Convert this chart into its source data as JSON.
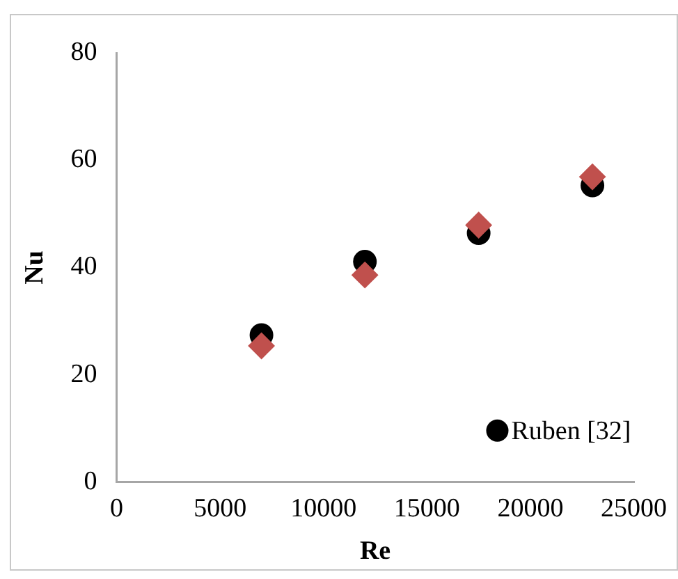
{
  "chart_data": {
    "type": "scatter",
    "xlabel": "Re",
    "ylabel": "Nu",
    "xlim": [
      0,
      25000
    ],
    "xticks": [
      0,
      5000,
      10000,
      15000,
      20000,
      25000
    ],
    "ylim": [
      0,
      80
    ],
    "yticks": [
      0,
      20,
      40,
      60,
      80
    ],
    "grid": false,
    "legend": "bottom right",
    "series": [
      {
        "name": "Ruben [32]",
        "color": "#000000",
        "marker": "circle",
        "x": [
          7000,
          12000,
          17500,
          23000
        ],
        "values": [
          27.4,
          41.1,
          46.4,
          55.3
        ]
      },
      {
        "color": "#c0504d",
        "marker": "diamond",
        "x": [
          7000,
          12000,
          17500,
          23000
        ],
        "values": [
          25.4,
          38.6,
          47.9,
          56.9
        ]
      }
    ]
  }
}
